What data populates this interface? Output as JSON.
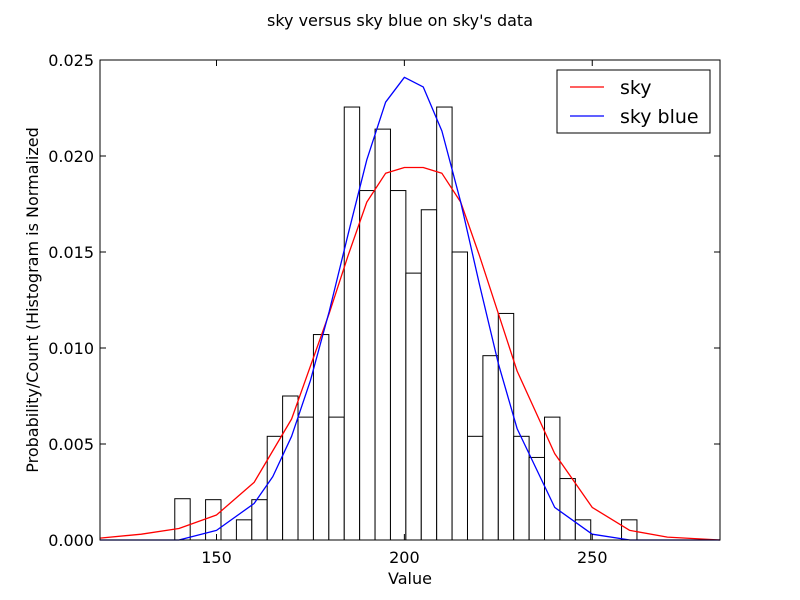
{
  "chart_data": {
    "type": "bar",
    "title": "sky versus sky blue on sky's data",
    "xlabel": "Value",
    "ylabel": "Probability/Count (Histogram is Normalized",
    "xlim": [
      119,
      284
    ],
    "ylim": [
      0,
      0.025
    ],
    "xticks": [
      150,
      200,
      250
    ],
    "xtick_labels": [
      "150",
      "200",
      "250"
    ],
    "yticks": [
      0,
      0.005,
      0.01,
      0.015,
      0.02,
      0.025
    ],
    "ytick_labels": [
      "0.000",
      "0.005",
      "0.010",
      "0.015",
      "0.020",
      "0.025"
    ],
    "grid": false,
    "legend_position": "top-right",
    "histogram": {
      "bin_width": 4.1,
      "bin_left_edges": [
        138.9,
        143.0,
        147.1,
        151.2,
        155.3,
        159.4,
        163.5,
        167.6,
        171.7,
        175.8,
        179.9,
        184.0,
        188.1,
        192.2,
        196.3,
        200.4,
        204.5,
        208.6,
        212.7,
        216.8,
        220.9,
        225.0,
        229.1,
        233.2,
        237.3,
        241.4,
        245.5,
        249.6,
        253.7,
        257.8
      ],
      "values": [
        0.00215,
        0.0,
        0.0021,
        0.0,
        0.00105,
        0.0021,
        0.0054,
        0.0075,
        0.0064,
        0.0107,
        0.0064,
        0.02255,
        0.0182,
        0.0214,
        0.0182,
        0.0139,
        0.0172,
        0.02255,
        0.015,
        0.0054,
        0.0096,
        0.0118,
        0.0054,
        0.0043,
        0.0064,
        0.0032,
        0.00105,
        0.0,
        0.0,
        0.00105
      ]
    },
    "series": [
      {
        "name": "sky",
        "color": "#ff0000",
        "x": [
          119,
          130,
          140,
          150,
          160,
          170,
          180,
          185,
          190,
          195,
          200,
          205,
          210,
          215,
          220,
          230,
          240,
          250,
          260,
          270,
          284
        ],
        "values": [
          0.0001,
          0.0003,
          0.0006,
          0.0013,
          0.003,
          0.0063,
          0.0118,
          0.0148,
          0.0176,
          0.0191,
          0.0194,
          0.0194,
          0.0191,
          0.0176,
          0.0148,
          0.0088,
          0.0045,
          0.0017,
          0.0005,
          0.00015,
          0.0
        ]
      },
      {
        "name": "sky blue",
        "color": "#0000ff",
        "x": [
          119,
          130,
          140,
          150,
          160,
          165,
          170,
          175,
          180,
          185,
          190,
          195,
          200,
          205,
          210,
          215,
          220,
          225,
          230,
          240,
          250,
          260,
          270,
          284
        ],
        "values": [
          0.0,
          0.0,
          0.0,
          0.0005,
          0.0019,
          0.0033,
          0.0054,
          0.0083,
          0.0119,
          0.0159,
          0.0198,
          0.0228,
          0.0241,
          0.0236,
          0.0213,
          0.0176,
          0.0133,
          0.0092,
          0.0058,
          0.0017,
          0.0003,
          0.0,
          0.0,
          0.0
        ]
      }
    ]
  }
}
